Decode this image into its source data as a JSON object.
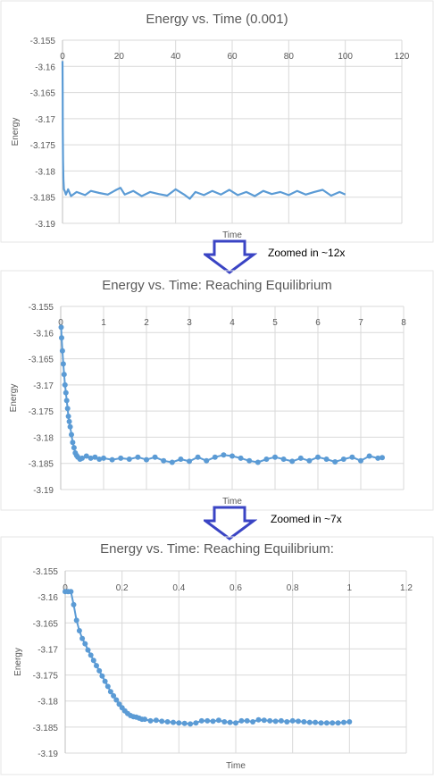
{
  "colors": {
    "series": "#5B9BD5",
    "grid": "#d9d9d9",
    "axis_text": "#595959",
    "title": "#595959",
    "arrow": "#3a44c4",
    "arrow_fill": "#ffffff"
  },
  "annotations": {
    "zoom_1": "Zoomed in ~12x",
    "zoom_2": "Zoomed in ~7x"
  },
  "chart_data": [
    {
      "type": "line",
      "title": "Energy vs. Time (0.001)",
      "xlabel": "Time",
      "ylabel": "Energy",
      "xlim": [
        0,
        120
      ],
      "ylim": [
        -3.19,
        -3.155
      ],
      "xticks": [
        0,
        20,
        40,
        60,
        80,
        100,
        120
      ],
      "yticks": [
        -3.155,
        -3.16,
        -3.165,
        -3.17,
        -3.175,
        -3.18,
        -3.185,
        -3.19
      ],
      "xtick_labels": [
        "0",
        "20",
        "40",
        "60",
        "80",
        "100",
        "120"
      ],
      "ytick_labels": [
        "-3.155",
        "-3.16",
        "-3.165",
        "-3.17",
        "-3.175",
        "-3.18",
        "-3.185",
        "-3.19"
      ],
      "grid": true,
      "markers": false,
      "series": [
        {
          "x": [
            0,
            0.05,
            0.1,
            0.2,
            0.3,
            0.5,
            0.8,
            1.2,
            2,
            3,
            5,
            8,
            10,
            13,
            16,
            19,
            20.5,
            22,
            25,
            28,
            31,
            34,
            37,
            40,
            43,
            45,
            47,
            50,
            53,
            56,
            59,
            62,
            65,
            68,
            71,
            74,
            77,
            80,
            83,
            86,
            89,
            92,
            95,
            98,
            100
          ],
          "y": [
            -3.159,
            -3.165,
            -3.172,
            -3.178,
            -3.1815,
            -3.1835,
            -3.1838,
            -3.1845,
            -3.1835,
            -3.1848,
            -3.184,
            -3.1846,
            -3.1838,
            -3.1842,
            -3.1845,
            -3.1836,
            -3.1832,
            -3.1845,
            -3.1838,
            -3.1848,
            -3.184,
            -3.1844,
            -3.1847,
            -3.1835,
            -3.1845,
            -3.1853,
            -3.184,
            -3.1846,
            -3.1838,
            -3.1845,
            -3.1836,
            -3.1846,
            -3.184,
            -3.1848,
            -3.1838,
            -3.1844,
            -3.184,
            -3.1846,
            -3.1838,
            -3.1845,
            -3.184,
            -3.1836,
            -3.1847,
            -3.184,
            -3.1845
          ]
        }
      ]
    },
    {
      "type": "line",
      "title": "Energy vs. Time: Reaching Equilibrium",
      "xlabel": "Time",
      "ylabel": "Energy",
      "xlim": [
        0,
        8
      ],
      "ylim": [
        -3.19,
        -3.155
      ],
      "xticks": [
        0,
        1,
        2,
        3,
        4,
        5,
        6,
        7,
        8
      ],
      "yticks": [
        -3.155,
        -3.16,
        -3.165,
        -3.17,
        -3.175,
        -3.18,
        -3.185,
        -3.19
      ],
      "xtick_labels": [
        "0",
        "1",
        "2",
        "3",
        "4",
        "5",
        "6",
        "7",
        "8"
      ],
      "ytick_labels": [
        "-3.155",
        "-3.16",
        "-3.165",
        "-3.17",
        "-3.175",
        "-3.18",
        "-3.185",
        "-3.19"
      ],
      "grid": true,
      "markers": true,
      "series": [
        {
          "x": [
            0.01,
            0.02,
            0.04,
            0.06,
            0.08,
            0.1,
            0.12,
            0.14,
            0.16,
            0.18,
            0.2,
            0.22,
            0.25,
            0.28,
            0.31,
            0.34,
            0.37,
            0.4,
            0.45,
            0.5,
            0.6,
            0.7,
            0.8,
            0.9,
            1.0,
            1.2,
            1.4,
            1.6,
            1.8,
            2.0,
            2.2,
            2.4,
            2.6,
            2.8,
            3.0,
            3.2,
            3.4,
            3.6,
            3.8,
            4.0,
            4.2,
            4.4,
            4.6,
            4.8,
            5.0,
            5.2,
            5.4,
            5.6,
            5.8,
            6.0,
            6.2,
            6.4,
            6.6,
            6.8,
            7.0,
            7.2,
            7.4,
            7.5
          ],
          "y": [
            -3.159,
            -3.161,
            -3.1635,
            -3.166,
            -3.168,
            -3.17,
            -3.1715,
            -3.173,
            -3.1745,
            -3.176,
            -3.177,
            -3.178,
            -3.1795,
            -3.181,
            -3.182,
            -3.183,
            -3.1835,
            -3.1838,
            -3.1842,
            -3.184,
            -3.1836,
            -3.184,
            -3.1838,
            -3.1842,
            -3.184,
            -3.1843,
            -3.184,
            -3.1842,
            -3.1838,
            -3.1843,
            -3.1838,
            -3.1845,
            -3.1848,
            -3.1842,
            -3.1846,
            -3.1838,
            -3.1845,
            -3.1838,
            -3.1834,
            -3.1836,
            -3.184,
            -3.1845,
            -3.1848,
            -3.1842,
            -3.1838,
            -3.1842,
            -3.1846,
            -3.184,
            -3.1845,
            -3.1838,
            -3.1842,
            -3.1847,
            -3.1842,
            -3.1838,
            -3.1845,
            -3.1836,
            -3.184,
            -3.1839
          ]
        }
      ]
    },
    {
      "type": "line",
      "title": "Energy vs. Time: Reaching Equilibrium:",
      "xlabel": "Time",
      "ylabel": "Energy",
      "xlim": [
        0,
        1.2
      ],
      "ylim": [
        -3.19,
        -3.155
      ],
      "xticks": [
        0,
        0.2,
        0.4,
        0.6,
        0.8,
        1.0,
        1.2
      ],
      "yticks": [
        -3.155,
        -3.16,
        -3.165,
        -3.17,
        -3.175,
        -3.18,
        -3.185,
        -3.19
      ],
      "xtick_labels": [
        "0",
        "0.2",
        "0.4",
        "0.6",
        "0.8",
        "1",
        "1.2"
      ],
      "ytick_labels": [
        "-3.155",
        "-3.16",
        "-3.165",
        "-3.17",
        "-3.175",
        "-3.18",
        "-3.185",
        "-3.19"
      ],
      "grid": true,
      "markers": true,
      "series": [
        {
          "x": [
            0.0,
            0.01,
            0.02,
            0.03,
            0.04,
            0.05,
            0.06,
            0.07,
            0.08,
            0.09,
            0.1,
            0.11,
            0.12,
            0.13,
            0.14,
            0.15,
            0.16,
            0.17,
            0.18,
            0.19,
            0.2,
            0.21,
            0.22,
            0.23,
            0.24,
            0.25,
            0.26,
            0.27,
            0.28,
            0.3,
            0.32,
            0.34,
            0.36,
            0.38,
            0.4,
            0.42,
            0.44,
            0.46,
            0.48,
            0.5,
            0.52,
            0.54,
            0.56,
            0.58,
            0.6,
            0.62,
            0.64,
            0.66,
            0.68,
            0.7,
            0.72,
            0.74,
            0.76,
            0.78,
            0.8,
            0.82,
            0.84,
            0.86,
            0.88,
            0.9,
            0.92,
            0.94,
            0.96,
            0.98,
            1.0
          ],
          "y": [
            -3.159,
            -3.159,
            -3.159,
            -3.1615,
            -3.1645,
            -3.1665,
            -3.168,
            -3.169,
            -3.1702,
            -3.1712,
            -3.1722,
            -3.1732,
            -3.1742,
            -3.1752,
            -3.1762,
            -3.1772,
            -3.1782,
            -3.179,
            -3.1798,
            -3.1806,
            -3.1813,
            -3.1819,
            -3.1824,
            -3.1828,
            -3.183,
            -3.1831,
            -3.1833,
            -3.1835,
            -3.1835,
            -3.1838,
            -3.1837,
            -3.1839,
            -3.184,
            -3.1841,
            -3.1842,
            -3.1843,
            -3.1844,
            -3.1842,
            -3.1838,
            -3.1838,
            -3.1839,
            -3.1837,
            -3.184,
            -3.1841,
            -3.1842,
            -3.1838,
            -3.1838,
            -3.184,
            -3.1836,
            -3.1837,
            -3.1838,
            -3.1839,
            -3.1838,
            -3.184,
            -3.1838,
            -3.1839,
            -3.184,
            -3.1841,
            -3.1841,
            -3.1842,
            -3.1842,
            -3.1842,
            -3.1842,
            -3.1841,
            -3.184
          ]
        }
      ]
    }
  ]
}
